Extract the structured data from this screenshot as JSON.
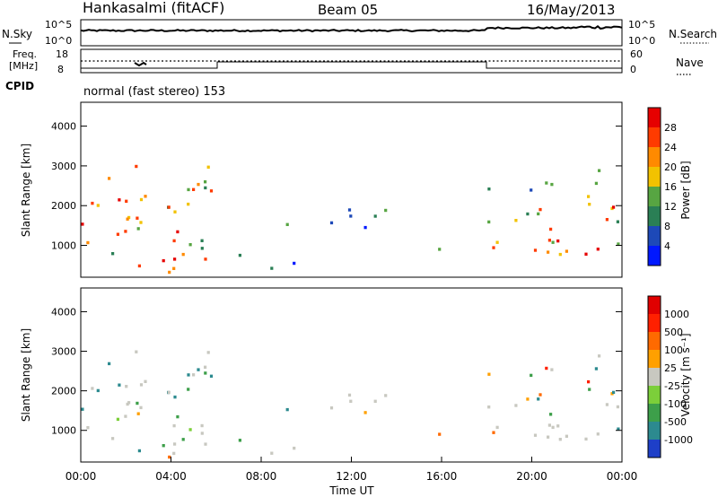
{
  "header": {
    "station": "Hankasalmi (fitACF)",
    "beam": "Beam 05",
    "date": "16/May/2013"
  },
  "strips": {
    "nsky_label": "N.Sky",
    "nsearch_label": "N.Search",
    "nsky_ticks": [
      "10^5",
      "10^0"
    ],
    "nsearch_ticks": [
      "10^5",
      "10^0"
    ],
    "freq_label_1": "Freq.",
    "freq_label_2": "[MHz]",
    "freq_ticks": [
      "18",
      "8"
    ],
    "nave_label": "Nave",
    "nave_ticks": [
      "60",
      "0"
    ],
    "cpid_label": "CPID",
    "cpid_text": "normal (fast stereo) 153"
  },
  "chart_data": [
    {
      "type": "heatmap",
      "title": "",
      "ylabel": "Slant Range [km]",
      "xlabel": "",
      "ylim": [
        200,
        4600
      ],
      "yticks": [
        "1000",
        "2000",
        "3000",
        "4000"
      ],
      "colorbar": {
        "label": "Power [dB]",
        "ticks": [
          "4",
          "8",
          "12",
          "16",
          "20",
          "24",
          "28"
        ],
        "colors": [
          "#0018ff",
          "#1d49b8",
          "#2a7f55",
          "#57a542",
          "#f2c200",
          "#ff8a00",
          "#ff3b00",
          "#e60000"
        ]
      }
    },
    {
      "type": "heatmap",
      "title": "",
      "ylabel": "Slant Range [km]",
      "xlabel": "Time UT",
      "ylim": [
        200,
        4600
      ],
      "yticks": [
        "1000",
        "2000",
        "3000",
        "4000"
      ],
      "xticks": [
        "00:00",
        "04:00",
        "08:00",
        "12:00",
        "16:00",
        "20:00",
        "00:00"
      ],
      "colorbar": {
        "label": "Velocity [m s⁻¹]",
        "ticks": [
          "1000",
          "500",
          "100",
          "25",
          "-25",
          "-100",
          "-500",
          "-1000"
        ],
        "colors": [
          "#1e3fc8",
          "#2c8a8f",
          "#3d9f4a",
          "#7ccf3a",
          "#c8c8c0",
          "#ffa000",
          "#ff6a00",
          "#ff2000",
          "#e00000"
        ]
      }
    }
  ]
}
